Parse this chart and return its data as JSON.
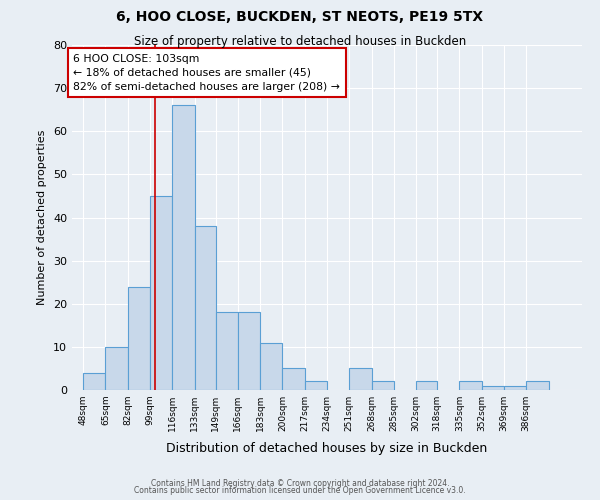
{
  "title": "6, HOO CLOSE, BUCKDEN, ST NEOTS, PE19 5TX",
  "subtitle": "Size of property relative to detached houses in Buckden",
  "xlabel": "Distribution of detached houses by size in Buckden",
  "ylabel": "Number of detached properties",
  "bin_labels": [
    "48sqm",
    "65sqm",
    "82sqm",
    "99sqm",
    "116sqm",
    "133sqm",
    "149sqm",
    "166sqm",
    "183sqm",
    "200sqm",
    "217sqm",
    "234sqm",
    "251sqm",
    "268sqm",
    "285sqm",
    "302sqm",
    "318sqm",
    "335sqm",
    "352sqm",
    "369sqm",
    "386sqm"
  ],
  "bin_edges": [
    48,
    65,
    82,
    99,
    116,
    133,
    149,
    166,
    183,
    200,
    217,
    234,
    251,
    268,
    285,
    302,
    318,
    335,
    352,
    369,
    386,
    403
  ],
  "bar_heights": [
    4,
    10,
    24,
    45,
    66,
    38,
    18,
    18,
    11,
    5,
    2,
    0,
    5,
    2,
    0,
    2,
    0,
    2,
    1,
    1,
    2
  ],
  "bar_color": "#c8d8ea",
  "bar_edge_color": "#5a9fd4",
  "vline_x": 103,
  "vline_color": "#cc0000",
  "annotation_line1": "6 HOO CLOSE: 103sqm",
  "annotation_line2": "← 18% of detached houses are smaller (45)",
  "annotation_line3": "82% of semi-detached houses are larger (208) →",
  "annotation_box_color": "#ffffff",
  "annotation_box_edge_color": "#cc0000",
  "ylim": [
    0,
    80
  ],
  "yticks": [
    0,
    10,
    20,
    30,
    40,
    50,
    60,
    70,
    80
  ],
  "background_color": "#e8eef4",
  "grid_color": "#ffffff",
  "footer_line1": "Contains HM Land Registry data © Crown copyright and database right 2024.",
  "footer_line2": "Contains public sector information licensed under the Open Government Licence v3.0."
}
